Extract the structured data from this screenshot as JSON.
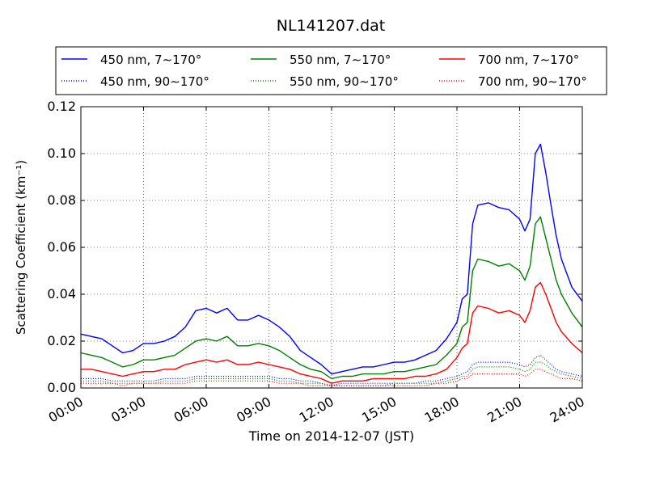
{
  "chart_data": {
    "type": "line",
    "title": "NL141207.dat",
    "xlabel": "Time on 2014-12-07 (JST)",
    "ylabel": "Scattering Coefficient (km⁻¹)",
    "xlim": [
      0,
      24
    ],
    "ylim": [
      0,
      0.12
    ],
    "grid": true,
    "legend_position": "top",
    "x_ticks": [
      {
        "value": 0,
        "label": "00:00"
      },
      {
        "value": 3,
        "label": "03:00"
      },
      {
        "value": 6,
        "label": "06:00"
      },
      {
        "value": 9,
        "label": "09:00"
      },
      {
        "value": 12,
        "label": "12:00"
      },
      {
        "value": 15,
        "label": "15:00"
      },
      {
        "value": 18,
        "label": "18:00"
      },
      {
        "value": 21,
        "label": "21:00"
      },
      {
        "value": 24,
        "label": "24:00"
      }
    ],
    "y_ticks": [
      {
        "value": 0,
        "label": "0.00"
      },
      {
        "value": 0.02,
        "label": "0.02"
      },
      {
        "value": 0.04,
        "label": "0.04"
      },
      {
        "value": 0.06,
        "label": "0.06"
      },
      {
        "value": 0.08,
        "label": "0.08"
      },
      {
        "value": 0.1,
        "label": "0.10"
      },
      {
        "value": 0.12,
        "label": "0.12"
      }
    ],
    "x": [
      0,
      0.5,
      1,
      1.5,
      2,
      2.5,
      3,
      3.5,
      4,
      4.5,
      5,
      5.5,
      6,
      6.5,
      7,
      7.5,
      8,
      8.5,
      9,
      9.5,
      10,
      10.5,
      11,
      11.5,
      12,
      12.5,
      13,
      13.5,
      14,
      14.5,
      15,
      15.5,
      16,
      16.5,
      17,
      17.5,
      18,
      18.25,
      18.5,
      18.75,
      19,
      19.5,
      20,
      20.5,
      21,
      21.25,
      21.5,
      21.75,
      22,
      22.25,
      22.5,
      22.75,
      23,
      23.5,
      24
    ],
    "series": [
      {
        "name": "450 nm, 7∼170°",
        "color": "#0000ff",
        "style": "solid",
        "values": [
          0.023,
          0.022,
          0.021,
          0.018,
          0.015,
          0.016,
          0.019,
          0.019,
          0.02,
          0.022,
          0.026,
          0.033,
          0.034,
          0.032,
          0.034,
          0.029,
          0.029,
          0.031,
          0.029,
          0.026,
          0.022,
          0.016,
          0.013,
          0.01,
          0.006,
          0.007,
          0.008,
          0.009,
          0.009,
          0.01,
          0.011,
          0.011,
          0.012,
          0.014,
          0.016,
          0.021,
          0.028,
          0.038,
          0.04,
          0.07,
          0.078,
          0.079,
          0.077,
          0.076,
          0.072,
          0.067,
          0.072,
          0.1,
          0.104,
          0.092,
          0.078,
          0.065,
          0.055,
          0.043,
          0.037
        ]
      },
      {
        "name": "550 nm, 7∼170°",
        "color": "#008000",
        "style": "solid",
        "values": [
          0.015,
          0.014,
          0.013,
          0.011,
          0.009,
          0.01,
          0.012,
          0.012,
          0.013,
          0.014,
          0.017,
          0.02,
          0.021,
          0.02,
          0.022,
          0.018,
          0.018,
          0.019,
          0.018,
          0.016,
          0.013,
          0.01,
          0.008,
          0.007,
          0.004,
          0.005,
          0.005,
          0.006,
          0.006,
          0.006,
          0.007,
          0.007,
          0.008,
          0.009,
          0.01,
          0.014,
          0.019,
          0.026,
          0.028,
          0.05,
          0.055,
          0.054,
          0.052,
          0.053,
          0.05,
          0.046,
          0.052,
          0.07,
          0.073,
          0.064,
          0.055,
          0.046,
          0.04,
          0.032,
          0.026
        ]
      },
      {
        "name": "700 nm, 7∼170°",
        "color": "#ff0000",
        "style": "solid",
        "values": [
          0.008,
          0.008,
          0.007,
          0.006,
          0.005,
          0.006,
          0.007,
          0.007,
          0.008,
          0.008,
          0.01,
          0.011,
          0.012,
          0.011,
          0.012,
          0.01,
          0.01,
          0.011,
          0.01,
          0.009,
          0.008,
          0.006,
          0.005,
          0.004,
          0.002,
          0.003,
          0.003,
          0.003,
          0.004,
          0.004,
          0.004,
          0.004,
          0.005,
          0.005,
          0.006,
          0.008,
          0.013,
          0.017,
          0.019,
          0.032,
          0.035,
          0.034,
          0.032,
          0.033,
          0.031,
          0.028,
          0.033,
          0.043,
          0.045,
          0.04,
          0.034,
          0.028,
          0.024,
          0.019,
          0.015
        ]
      },
      {
        "name": "450 nm, 90∼170°",
        "color": "#0000ff",
        "style": "dotted",
        "values": [
          0.004,
          0.004,
          0.004,
          0.003,
          0.003,
          0.003,
          0.003,
          0.003,
          0.004,
          0.004,
          0.004,
          0.005,
          0.005,
          0.005,
          0.005,
          0.005,
          0.005,
          0.005,
          0.005,
          0.004,
          0.004,
          0.003,
          0.003,
          0.002,
          0.001,
          0.002,
          0.002,
          0.002,
          0.002,
          0.002,
          0.002,
          0.002,
          0.002,
          0.003,
          0.003,
          0.004,
          0.005,
          0.006,
          0.007,
          0.01,
          0.011,
          0.011,
          0.011,
          0.011,
          0.01,
          0.009,
          0.01,
          0.013,
          0.014,
          0.012,
          0.01,
          0.008,
          0.007,
          0.006,
          0.005
        ]
      },
      {
        "name": "550 nm, 90∼170°",
        "color": "#008000",
        "style": "dotted",
        "values": [
          0.003,
          0.003,
          0.003,
          0.002,
          0.002,
          0.002,
          0.002,
          0.002,
          0.003,
          0.003,
          0.003,
          0.004,
          0.004,
          0.004,
          0.004,
          0.004,
          0.004,
          0.004,
          0.004,
          0.003,
          0.003,
          0.002,
          0.002,
          0.002,
          0.001,
          0.001,
          0.001,
          0.001,
          0.001,
          0.001,
          0.002,
          0.002,
          0.002,
          0.002,
          0.002,
          0.003,
          0.004,
          0.005,
          0.005,
          0.008,
          0.009,
          0.009,
          0.009,
          0.009,
          0.008,
          0.007,
          0.008,
          0.011,
          0.011,
          0.01,
          0.008,
          0.007,
          0.006,
          0.005,
          0.004
        ]
      },
      {
        "name": "700 nm, 90∼170°",
        "color": "#ff0000",
        "style": "dotted",
        "values": [
          0.002,
          0.002,
          0.002,
          0.002,
          0.001,
          0.002,
          0.002,
          0.002,
          0.002,
          0.002,
          0.002,
          0.003,
          0.003,
          0.003,
          0.003,
          0.003,
          0.003,
          0.003,
          0.003,
          0.002,
          0.002,
          0.002,
          0.001,
          0.001,
          0.001,
          0.001,
          0.001,
          0.001,
          0.001,
          0.001,
          0.001,
          0.001,
          0.001,
          0.001,
          0.002,
          0.002,
          0.003,
          0.004,
          0.004,
          0.006,
          0.006,
          0.006,
          0.006,
          0.006,
          0.006,
          0.005,
          0.006,
          0.008,
          0.008,
          0.007,
          0.006,
          0.005,
          0.004,
          0.004,
          0.003
        ]
      }
    ]
  }
}
